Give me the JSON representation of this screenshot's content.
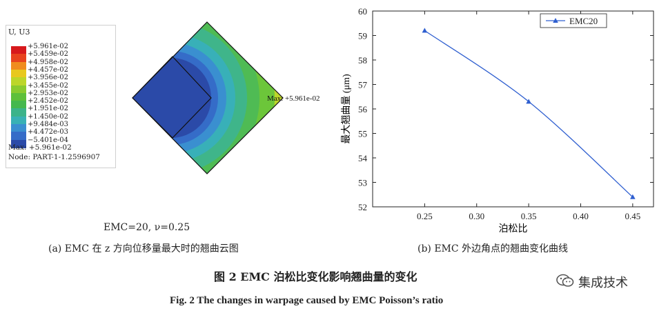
{
  "contour": {
    "legend_title": "U, U3",
    "ticks": [
      "+5.961e-02",
      "+5.459e-02",
      "+4.958e-02",
      "+4.457e-02",
      "+3.956e-02",
      "+3.455e-02",
      "+2.953e-02",
      "+2.452e-02",
      "+1.951e-02",
      "+1.450e-02",
      "+9.484e-03",
      "+4.472e-03",
      "−5.401e-04"
    ],
    "colors": [
      "#d7191c",
      "#e8431e",
      "#f08c1e",
      "#e8c81e",
      "#bcd62a",
      "#8acb2f",
      "#5ec03a",
      "#44b84e",
      "#3bb38a",
      "#38b1b5",
      "#3a8fd0",
      "#356cc8",
      "#2b4aa8"
    ],
    "max_note": "Max: +5.961e-02",
    "node_note": "Node: PART-1-1.2596907",
    "max_label": "Max: +5.961e-02",
    "param_label": "EMC=20,  ν=0.25",
    "caption": "(a) EMC 在 z 方向位移量最大时的翘曲云图"
  },
  "chart_data": {
    "type": "line",
    "x": [
      0.25,
      0.35,
      0.45
    ],
    "series": [
      {
        "name": "EMC20",
        "values": [
          59.2,
          56.3,
          52.4
        ],
        "color": "#2f5fd0",
        "marker": "triangle"
      }
    ],
    "xlabel": "泊松比",
    "ylabel": "最大翘曲量 (μm)",
    "xlim": [
      0.2,
      0.47
    ],
    "ylim": [
      52,
      60
    ],
    "xticks": [
      0.25,
      0.3,
      0.35,
      0.4,
      0.45
    ],
    "xtick_labels": [
      "0.25",
      "0.30",
      "0.35",
      "0.40",
      "0.45"
    ],
    "yticks": [
      52,
      53,
      54,
      55,
      56,
      57,
      58,
      59,
      60
    ],
    "grid": false,
    "legend": "top-right"
  },
  "chart_caption": "(b) EMC 外边角点的翘曲变化曲线",
  "figure_title": "图 2    EMC 泊松比变化影响翘曲量的变化",
  "figure_title_en": "Fig. 2    The changes in warpage caused by EMC Poisson’s ratio",
  "watermark": "集成技术"
}
